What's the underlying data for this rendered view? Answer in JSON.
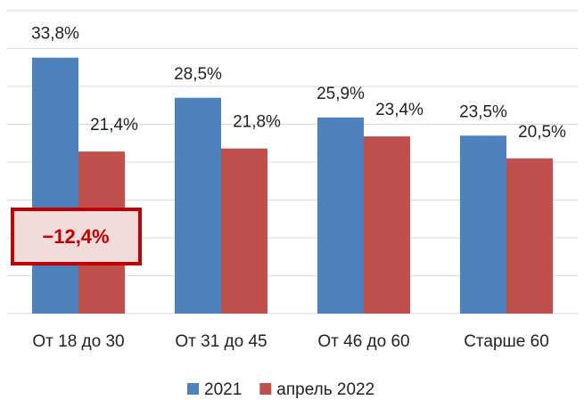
{
  "chart_data": {
    "type": "bar",
    "categories": [
      "От 18 до 30",
      "От 31 до 45",
      "От 46 до 60",
      "Старше 60"
    ],
    "series": [
      {
        "name": "2021",
        "color": "#4f81bd",
        "values": [
          33.8,
          28.5,
          25.9,
          23.5
        ],
        "value_labels": [
          "33,8%",
          "28,5%",
          "25,9%",
          "23,5%"
        ]
      },
      {
        "name": "апрель 2022",
        "color": "#c0504d",
        "values": [
          21.4,
          21.8,
          23.4,
          20.5
        ],
        "value_labels": [
          "21,4%",
          "21,8%",
          "23,4%",
          "20,5%"
        ]
      }
    ],
    "ylim": [
      0,
      40
    ],
    "yticks": [
      0,
      5,
      10,
      15,
      20,
      25,
      30,
      35,
      40
    ],
    "grid": true,
    "legend": "bottom",
    "annotation": "−12,4%"
  }
}
